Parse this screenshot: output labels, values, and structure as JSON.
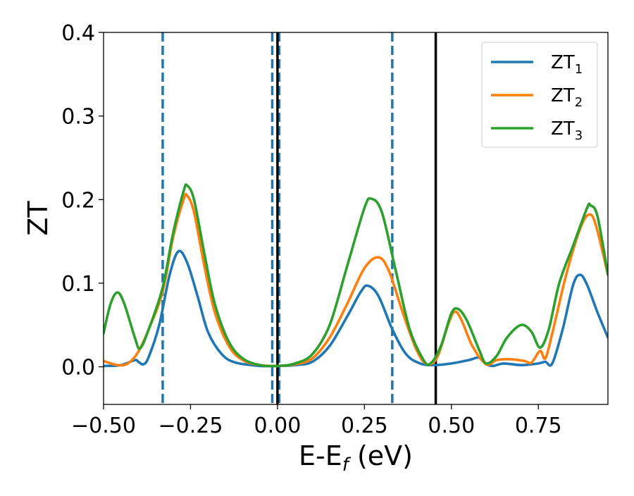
{
  "chart_data": {
    "type": "line",
    "title": "",
    "xlabel": "E-E",
    "xlabel_sub": "f",
    "xlabel_unit": " (eV)",
    "ylabel": "ZT",
    "xlim": [
      -0.5,
      0.95
    ],
    "ylim": [
      -0.045,
      0.4
    ],
    "xticks": [
      -0.5,
      -0.25,
      0.0,
      0.25,
      0.5,
      0.75
    ],
    "xtick_labels": [
      "−0.50",
      "−0.25",
      "0.00",
      "0.25",
      "0.50",
      "0.75"
    ],
    "yticks": [
      0.0,
      0.1,
      0.2,
      0.3,
      0.4
    ],
    "ytick_labels": [
      "0.0",
      "0.1",
      "0.2",
      "0.3",
      "0.4"
    ],
    "grid": false,
    "legend_position": "top-right",
    "vlines_dashed": [
      -0.33,
      -0.015,
      0.005,
      0.33
    ],
    "vlines_dashed_color": "#1f77b4",
    "vlines_solid": [
      0.0,
      0.455
    ],
    "vlines_solid_color": "#000000",
    "series": [
      {
        "name": "ZT",
        "name_sub": "1",
        "color": "#1f77b4",
        "points": [
          [
            -0.5,
            0.001
          ],
          [
            -0.45,
            0.002
          ],
          [
            -0.41,
            0.008
          ],
          [
            -0.4,
            0.006
          ],
          [
            -0.385,
            0.003
          ],
          [
            -0.37,
            0.012
          ],
          [
            -0.34,
            0.05
          ],
          [
            -0.31,
            0.11
          ],
          [
            -0.285,
            0.138
          ],
          [
            -0.26,
            0.125
          ],
          [
            -0.23,
            0.085
          ],
          [
            -0.2,
            0.042
          ],
          [
            -0.16,
            0.015
          ],
          [
            -0.12,
            0.005
          ],
          [
            -0.05,
            0.001
          ],
          [
            0.0,
            0.001
          ],
          [
            0.05,
            0.002
          ],
          [
            0.1,
            0.006
          ],
          [
            0.15,
            0.025
          ],
          [
            0.2,
            0.06
          ],
          [
            0.24,
            0.09
          ],
          [
            0.26,
            0.097
          ],
          [
            0.29,
            0.085
          ],
          [
            0.33,
            0.045
          ],
          [
            0.37,
            0.015
          ],
          [
            0.41,
            0.004
          ],
          [
            0.45,
            0.002
          ],
          [
            0.5,
            0.004
          ],
          [
            0.55,
            0.008
          ],
          [
            0.58,
            0.011
          ],
          [
            0.6,
            0.003
          ],
          [
            0.62,
            0.001
          ],
          [
            0.65,
            0.004
          ],
          [
            0.7,
            0.002
          ],
          [
            0.75,
            0.004
          ],
          [
            0.77,
            0.006
          ],
          [
            0.79,
            0.004
          ],
          [
            0.82,
            0.045
          ],
          [
            0.85,
            0.098
          ],
          [
            0.87,
            0.11
          ],
          [
            0.89,
            0.098
          ],
          [
            0.92,
            0.065
          ],
          [
            0.95,
            0.035
          ]
        ]
      },
      {
        "name": "ZT",
        "name_sub": "2",
        "color": "#ff7f0e",
        "points": [
          [
            -0.5,
            0.007
          ],
          [
            -0.46,
            0.002
          ],
          [
            -0.43,
            0.004
          ],
          [
            -0.4,
            0.018
          ],
          [
            -0.37,
            0.045
          ],
          [
            -0.33,
            0.09
          ],
          [
            -0.3,
            0.155
          ],
          [
            -0.27,
            0.2
          ],
          [
            -0.26,
            0.205
          ],
          [
            -0.24,
            0.185
          ],
          [
            -0.21,
            0.12
          ],
          [
            -0.18,
            0.065
          ],
          [
            -0.14,
            0.025
          ],
          [
            -0.1,
            0.008
          ],
          [
            -0.05,
            0.002
          ],
          [
            0.0,
            0.001
          ],
          [
            0.05,
            0.003
          ],
          [
            0.1,
            0.01
          ],
          [
            0.15,
            0.035
          ],
          [
            0.2,
            0.075
          ],
          [
            0.25,
            0.118
          ],
          [
            0.29,
            0.131
          ],
          [
            0.32,
            0.115
          ],
          [
            0.36,
            0.065
          ],
          [
            0.4,
            0.02
          ],
          [
            0.43,
            0.003
          ],
          [
            0.46,
            0.012
          ],
          [
            0.49,
            0.05
          ],
          [
            0.51,
            0.066
          ],
          [
            0.53,
            0.055
          ],
          [
            0.56,
            0.025
          ],
          [
            0.6,
            0.003
          ],
          [
            0.63,
            0.008
          ],
          [
            0.67,
            0.009
          ],
          [
            0.71,
            0.007
          ],
          [
            0.73,
            0.005
          ],
          [
            0.755,
            0.019
          ],
          [
            0.77,
            0.01
          ],
          [
            0.79,
            0.04
          ],
          [
            0.83,
            0.11
          ],
          [
            0.87,
            0.165
          ],
          [
            0.895,
            0.182
          ],
          [
            0.915,
            0.17
          ],
          [
            0.95,
            0.11
          ]
        ]
      },
      {
        "name": "ZT",
        "name_sub": "3",
        "color": "#2ca02c",
        "points": [
          [
            -0.5,
            0.04
          ],
          [
            -0.48,
            0.075
          ],
          [
            -0.46,
            0.089
          ],
          [
            -0.44,
            0.075
          ],
          [
            -0.41,
            0.035
          ],
          [
            -0.395,
            0.022
          ],
          [
            -0.37,
            0.045
          ],
          [
            -0.33,
            0.095
          ],
          [
            -0.3,
            0.16
          ],
          [
            -0.27,
            0.21
          ],
          [
            -0.26,
            0.217
          ],
          [
            -0.24,
            0.2
          ],
          [
            -0.21,
            0.135
          ],
          [
            -0.18,
            0.075
          ],
          [
            -0.14,
            0.03
          ],
          [
            -0.1,
            0.01
          ],
          [
            -0.05,
            0.002
          ],
          [
            0.0,
            0.001
          ],
          [
            0.05,
            0.004
          ],
          [
            0.1,
            0.015
          ],
          [
            0.15,
            0.05
          ],
          [
            0.2,
            0.12
          ],
          [
            0.25,
            0.19
          ],
          [
            0.27,
            0.201
          ],
          [
            0.3,
            0.185
          ],
          [
            0.34,
            0.115
          ],
          [
            0.38,
            0.045
          ],
          [
            0.42,
            0.008
          ],
          [
            0.44,
            0.004
          ],
          [
            0.47,
            0.025
          ],
          [
            0.5,
            0.064
          ],
          [
            0.52,
            0.069
          ],
          [
            0.545,
            0.055
          ],
          [
            0.58,
            0.02
          ],
          [
            0.6,
            0.004
          ],
          [
            0.63,
            0.013
          ],
          [
            0.66,
            0.035
          ],
          [
            0.7,
            0.05
          ],
          [
            0.73,
            0.042
          ],
          [
            0.755,
            0.023
          ],
          [
            0.78,
            0.045
          ],
          [
            0.81,
            0.1
          ],
          [
            0.85,
            0.145
          ],
          [
            0.89,
            0.19
          ],
          [
            0.9,
            0.193
          ],
          [
            0.92,
            0.18
          ],
          [
            0.95,
            0.11
          ]
        ]
      }
    ]
  }
}
